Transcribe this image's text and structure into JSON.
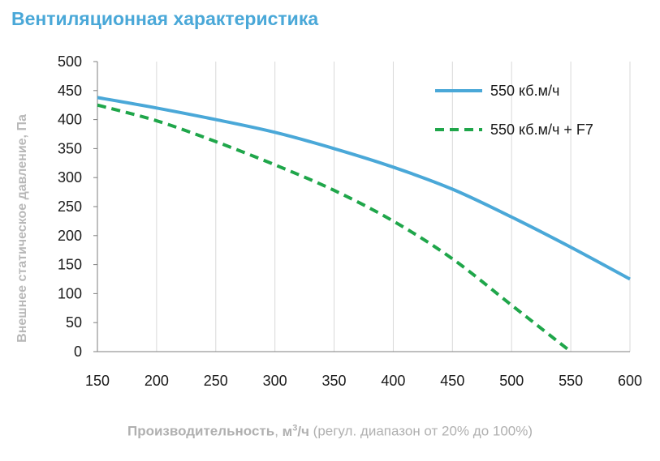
{
  "chart_data": {
    "type": "line",
    "title": "Вентиляционная характеристика",
    "ylabel": "Внешнее статическое давление, Па",
    "xlabel": {
      "bold_part": "Производительность",
      "separator": ", ",
      "unit_base": "м",
      "unit_sup": "3",
      "unit_tail": "/ч",
      "note": " (регул. диапазон от 20% до 100%)"
    },
    "xlim": [
      150,
      600
    ],
    "ylim": [
      0,
      500
    ],
    "x_ticks": [
      "150",
      "200",
      "250",
      "300",
      "350",
      "400",
      "450",
      "500",
      "550",
      "600"
    ],
    "y_ticks": [
      "0",
      "50",
      "100",
      "150",
      "200",
      "250",
      "300",
      "350",
      "400",
      "450",
      "500"
    ],
    "grid": "vertical",
    "legend_position": "top-right",
    "series": [
      {
        "name": "550 кб.м/ч",
        "color": "#4aa8d8",
        "dash": "solid",
        "x": [
          150,
          200,
          250,
          300,
          350,
          400,
          450,
          500,
          550,
          600
        ],
        "y": [
          438,
          420,
          400,
          378,
          350,
          318,
          280,
          232,
          180,
          125
        ]
      },
      {
        "name": "550 кб.м/ч + F7",
        "color": "#1fa64a",
        "dash": "dashed",
        "x": [
          150,
          200,
          250,
          300,
          350,
          400,
          450,
          500,
          550
        ],
        "y": [
          425,
          398,
          362,
          322,
          278,
          225,
          160,
          80,
          0
        ]
      }
    ]
  }
}
